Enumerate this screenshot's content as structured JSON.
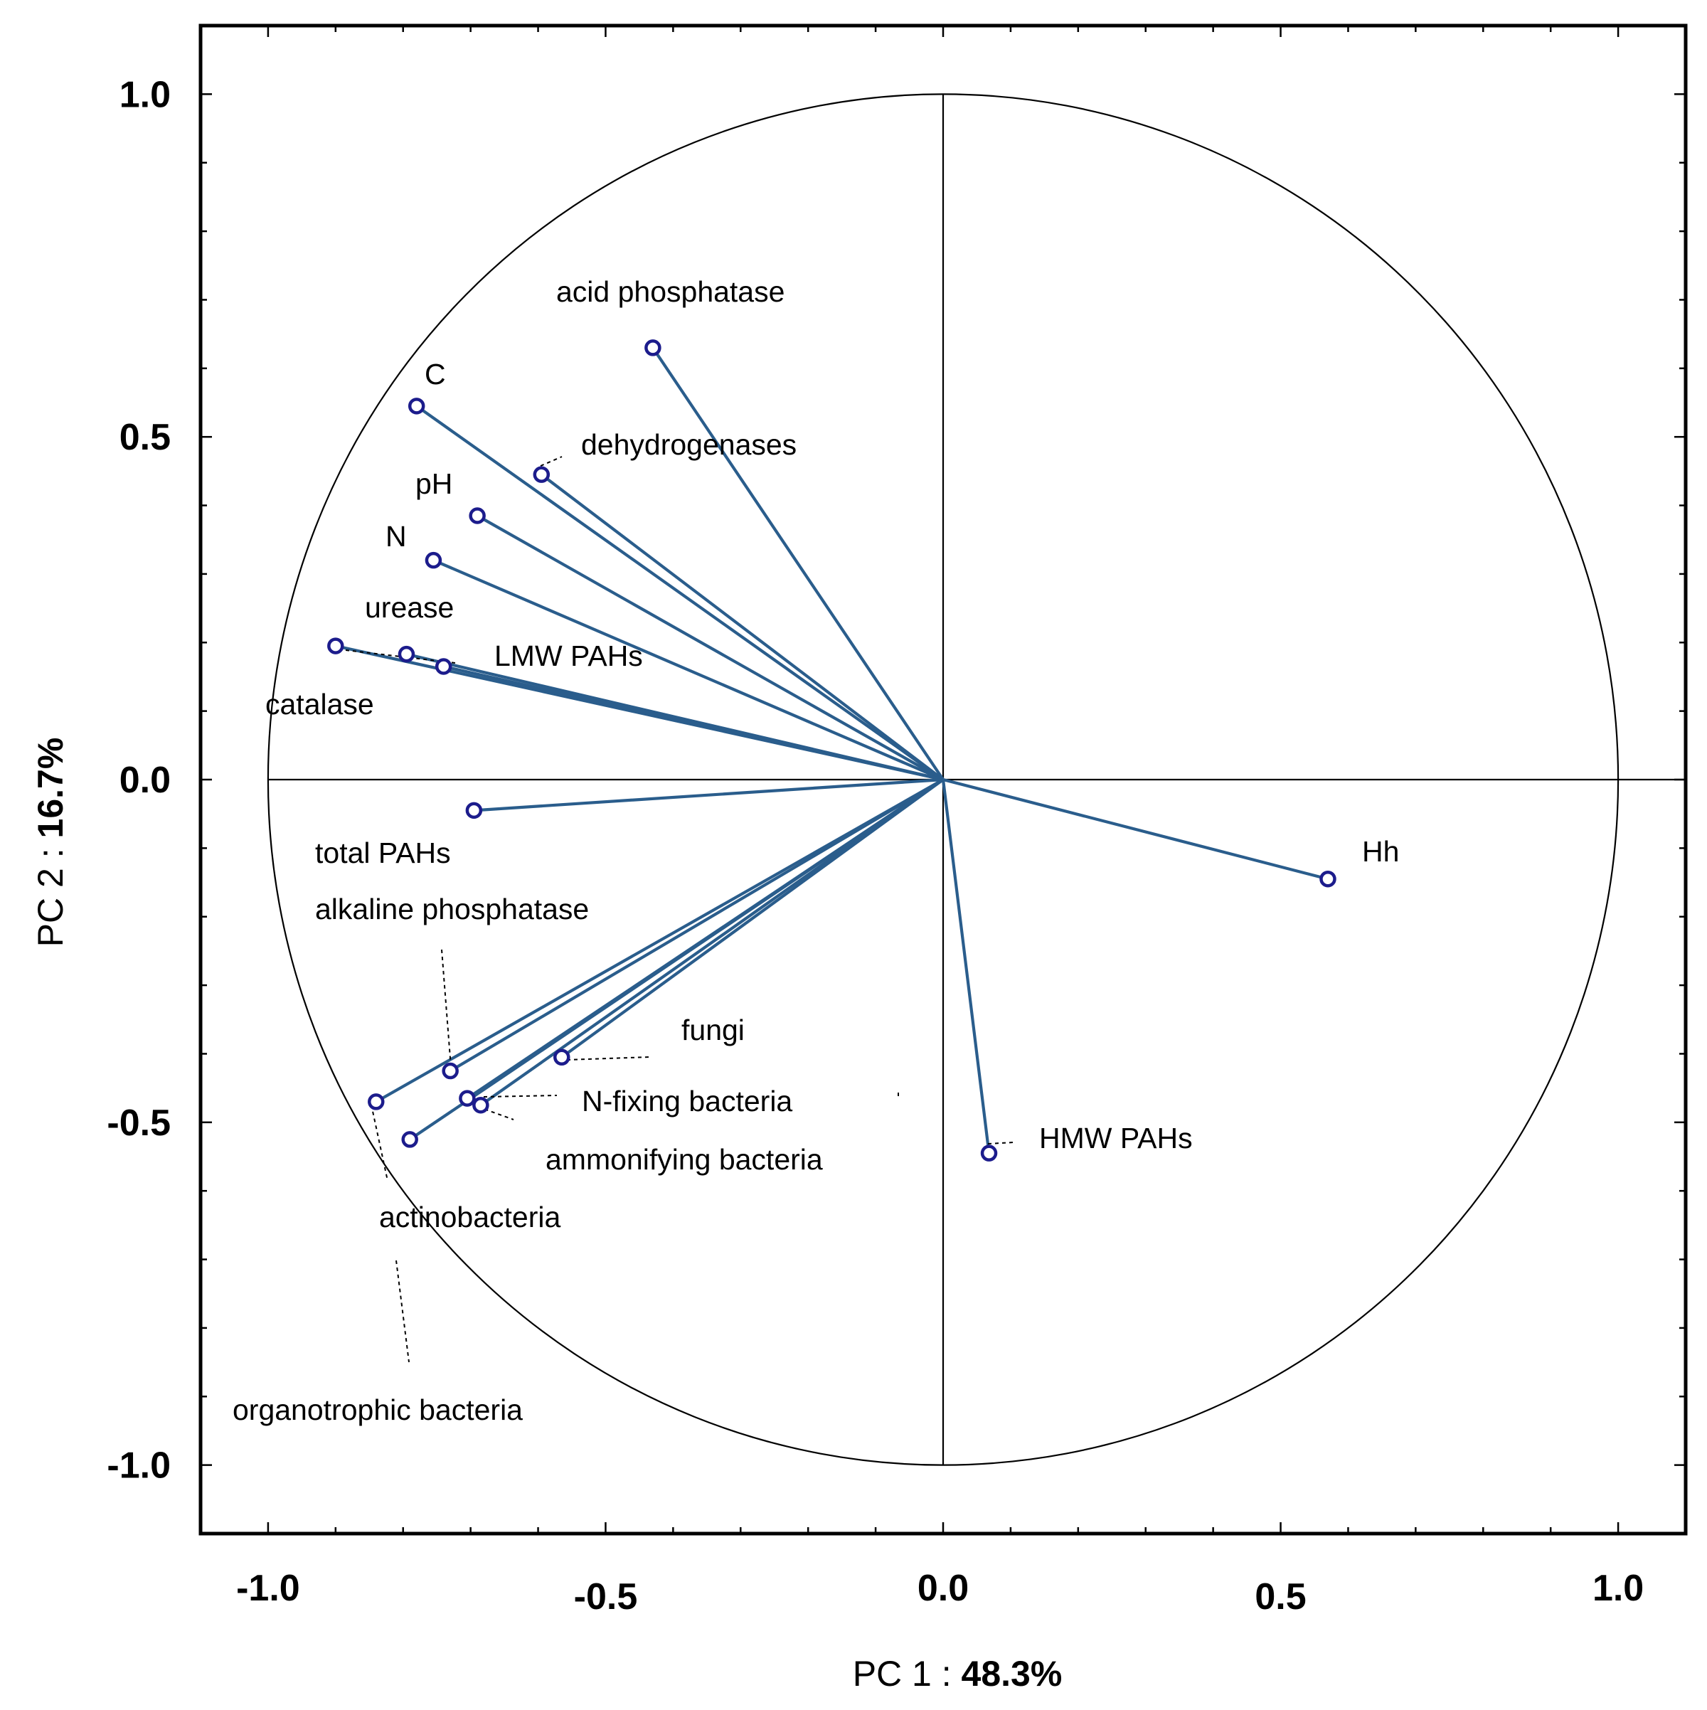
{
  "chart_data": {
    "type": "scatter",
    "subtype": "pca-correlation-circle",
    "xlabel": {
      "prefix": "PC 1 : ",
      "value": "48.3%"
    },
    "ylabel": {
      "prefix": "PC 2 : ",
      "value": "16.7%"
    },
    "xlim": [
      -1.1,
      1.1
    ],
    "ylim": [
      -1.1,
      1.1
    ],
    "x_ticks": [
      {
        "value": -1.0,
        "label": "-1.0"
      },
      {
        "value": -0.5,
        "label": "-0.5"
      },
      {
        "value": 0.0,
        "label": "0.0"
      },
      {
        "value": 0.5,
        "label": "0.5"
      },
      {
        "value": 1.0,
        "label": "1.0"
      }
    ],
    "y_ticks": [
      {
        "value": 1.0,
        "label": "1.0"
      },
      {
        "value": 0.5,
        "label": "0.5"
      },
      {
        "value": 0.0,
        "label": "0.0"
      },
      {
        "value": -0.5,
        "label": "-0.5"
      },
      {
        "value": -1.0,
        "label": "-1.0"
      }
    ],
    "unit_circle": true,
    "colors": {
      "vector": "#2a5d8c",
      "marker": "#1c1c8c",
      "axis": "#000000"
    },
    "variables": [
      {
        "name": "acid phosphatase",
        "x": -0.43,
        "y": 0.63
      },
      {
        "name": "C",
        "x": -0.78,
        "y": 0.545
      },
      {
        "name": "dehydrogenases",
        "x": -0.595,
        "y": 0.445
      },
      {
        "name": "pH",
        "x": -0.69,
        "y": 0.385
      },
      {
        "name": "N",
        "x": -0.755,
        "y": 0.32
      },
      {
        "name": "urease",
        "x": -0.795,
        "y": 0.183
      },
      {
        "name": "catalase",
        "x": -0.9,
        "y": 0.195
      },
      {
        "name": "LMW PAHs",
        "x": -0.74,
        "y": 0.165
      },
      {
        "name": "total PAHs",
        "x": -0.695,
        "y": -0.045
      },
      {
        "name": "Hh",
        "x": 0.57,
        "y": -0.145
      },
      {
        "name": "alkaline phosphatase",
        "x": -0.73,
        "y": -0.425
      },
      {
        "name": "fungi",
        "x": -0.565,
        "y": -0.405
      },
      {
        "name": "N-fixing bacteria",
        "x": -0.705,
        "y": -0.465
      },
      {
        "name": "ammonifying bacteria",
        "x": -0.685,
        "y": -0.475
      },
      {
        "name": "actinobacteria",
        "x": -0.84,
        "y": -0.47
      },
      {
        "name": "organotrophic bacteria",
        "x": -0.79,
        "y": -0.525
      },
      {
        "name": "HMW PAHs",
        "x": 0.068,
        "y": -0.545
      }
    ]
  }
}
